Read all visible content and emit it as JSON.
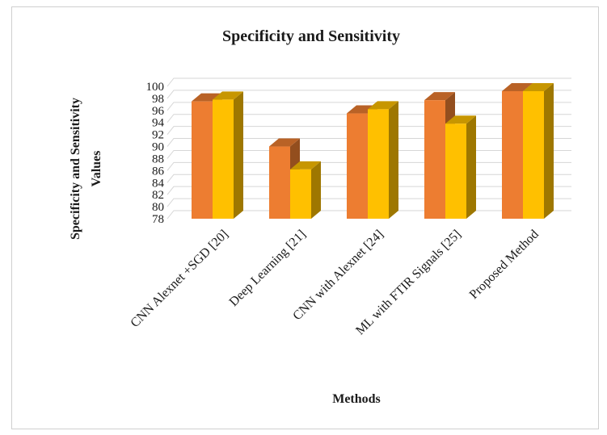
{
  "chart_data": {
    "type": "bar",
    "title": "Specificity and Sensitivity",
    "xlabel": "Methods",
    "ylabel": "Specificity and Sensitivity Values",
    "ylim": [
      78,
      100
    ],
    "yticks": [
      78,
      80,
      82,
      84,
      86,
      88,
      90,
      92,
      94,
      96,
      98,
      100
    ],
    "grid": true,
    "legend": "none",
    "categories": [
      "CNN Alexnet +SGD [20]",
      "Deep Learning [21]",
      "CNN with Alexnet [24]",
      "ML with FTIR Signals [25]",
      "Proposed Method"
    ],
    "series": [
      {
        "values": [
          97.5,
          90.0,
          95.5,
          97.7,
          99.2
        ],
        "color": "#ED7D31"
      },
      {
        "values": [
          97.8,
          86.2,
          96.2,
          93.8,
          99.2
        ],
        "color": "#FFC000"
      }
    ]
  }
}
